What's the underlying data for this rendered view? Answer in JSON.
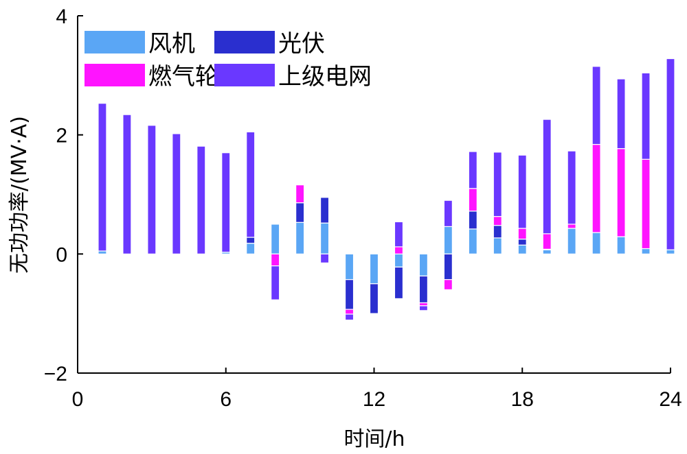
{
  "chart_data": {
    "type": "bar",
    "stacked": true,
    "xlabel": "时间/h",
    "ylabel": "无功功率/(MV·A)",
    "xlim": [
      0,
      24
    ],
    "ylim": [
      -2,
      4
    ],
    "xticks": [
      "0",
      "6",
      "12",
      "18",
      "24"
    ],
    "yticks": [
      "−2",
      "0",
      "2",
      "4"
    ],
    "legend_position": "top-left",
    "grid": false,
    "x": [
      1,
      2,
      3,
      4,
      5,
      6,
      7,
      8,
      9,
      10,
      11,
      12,
      13,
      14,
      15,
      16,
      17,
      18,
      19,
      20,
      21,
      22,
      23,
      24
    ],
    "series": [
      {
        "name": "风机",
        "color": "#5aa6f5",
        "values": [
          0.05,
          0,
          0,
          0,
          0,
          0.03,
          0.18,
          0.5,
          0.53,
          0.52,
          -0.43,
          -0.5,
          -0.22,
          -0.37,
          0.46,
          0.42,
          0.27,
          0.15,
          0.07,
          0.43,
          0.36,
          0.29,
          0.09,
          0.07
        ]
      },
      {
        "name": "光伏",
        "color": "#2a2fcf",
        "values": [
          0,
          0,
          0,
          0,
          0,
          0,
          0.1,
          0,
          0.33,
          0.43,
          -0.5,
          -0.5,
          -0.53,
          -0.45,
          -0.43,
          0.3,
          0.21,
          0.1,
          0.01,
          0,
          0,
          0,
          0,
          0
        ]
      },
      {
        "name": "燃气轮机",
        "color": "#ff14ff",
        "values": [
          0,
          0,
          0,
          0,
          0,
          0,
          0,
          -0.2,
          0.3,
          0,
          -0.08,
          0,
          0.12,
          -0.05,
          -0.17,
          0.38,
          0.15,
          0.18,
          0.26,
          0.07,
          1.48,
          1.48,
          1.5,
          0
        ]
      },
      {
        "name": "上级电网",
        "color": "#6a38ff",
        "values": [
          2.48,
          2.34,
          2.16,
          2.02,
          1.81,
          1.67,
          1.77,
          -0.57,
          0,
          -0.15,
          -0.1,
          0,
          0.42,
          -0.08,
          0.44,
          0.62,
          1.08,
          1.23,
          1.92,
          1.23,
          1.31,
          1.17,
          1.45,
          3.21
        ]
      }
    ]
  }
}
